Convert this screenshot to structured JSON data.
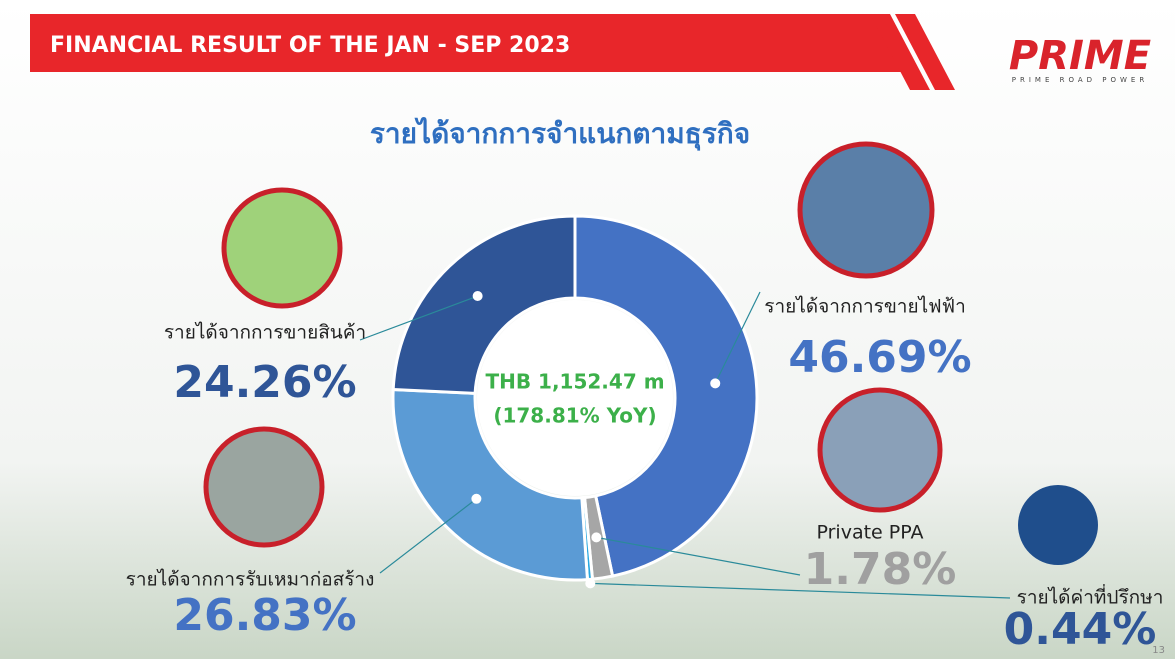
{
  "header": {
    "title": "FINANCIAL RESULT OF THE JAN - SEP 2023",
    "logo": "PRIME",
    "logo_tagline": "PRIME ROAD POWER"
  },
  "page_number": "13",
  "chart_data": {
    "type": "donut",
    "title": "รายได้จากการจำแนกตามธุรกิจ",
    "center_text": [
      "THB 1,152.47 m",
      "(178.81% YoY)"
    ],
    "categories": [
      "รายได้จากการขายไฟฟ้า",
      "Private PPA",
      "รายได้ค่าที่ปรึกษา",
      "รายได้จากการรับเหมาก่อสร้าง",
      "รายได้จากการขายสินค้า"
    ],
    "values": [
      46.69,
      1.78,
      0.44,
      26.83,
      24.26
    ],
    "value_labels": [
      "46.69%",
      "1.78%",
      "0.44%",
      "26.83%",
      "24.26%"
    ],
    "colors": [
      "#4472c4",
      "#a6a6a6",
      "#29a8e0",
      "#5b9bd5",
      "#2f5597"
    ]
  }
}
